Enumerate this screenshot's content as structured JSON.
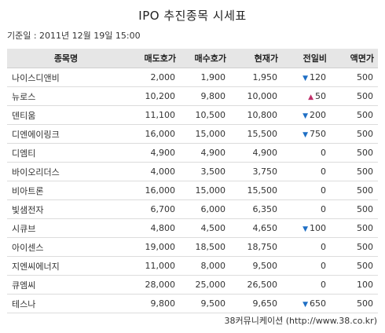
{
  "title": "IPO 추진종목 시세표",
  "base_date": "기준일 : 2011년 12월 19일 15:00",
  "columns": [
    "종목명",
    "매도호가",
    "매수호가",
    "현재가",
    "전일비",
    "액면가"
  ],
  "icons": {
    "down": "triangle-down-icon",
    "up": "triangle-up-icon"
  },
  "colors": {
    "down": "#1f6fc5",
    "up": "#c0306a",
    "header_bg": "#e6e6e6"
  },
  "rows": [
    {
      "name": "나이스디앤비",
      "ask": "2,000",
      "bid": "1,900",
      "price": "1,950",
      "dir": "down",
      "change": "120",
      "par": "500"
    },
    {
      "name": "뉴로스",
      "ask": "10,200",
      "bid": "9,800",
      "price": "10,000",
      "dir": "up",
      "change": "50",
      "par": "500"
    },
    {
      "name": "덴티움",
      "ask": "11,100",
      "bid": "10,500",
      "price": "10,800",
      "dir": "down",
      "change": "200",
      "par": "500"
    },
    {
      "name": "디엔에이링크",
      "ask": "16,000",
      "bid": "15,000",
      "price": "15,500",
      "dir": "down",
      "change": "750",
      "par": "500"
    },
    {
      "name": "디엠티",
      "ask": "4,900",
      "bid": "4,900",
      "price": "4,900",
      "dir": "",
      "change": "0",
      "par": "500"
    },
    {
      "name": "바이오리더스",
      "ask": "4,000",
      "bid": "3,500",
      "price": "3,750",
      "dir": "",
      "change": "0",
      "par": "500"
    },
    {
      "name": "비아트론",
      "ask": "16,000",
      "bid": "15,000",
      "price": "15,500",
      "dir": "",
      "change": "0",
      "par": "500"
    },
    {
      "name": "빛샘전자",
      "ask": "6,700",
      "bid": "6,000",
      "price": "6,350",
      "dir": "",
      "change": "0",
      "par": "500"
    },
    {
      "name": "시큐브",
      "ask": "4,800",
      "bid": "4,500",
      "price": "4,650",
      "dir": "down",
      "change": "100",
      "par": "500"
    },
    {
      "name": "아이센스",
      "ask": "19,000",
      "bid": "18,500",
      "price": "18,750",
      "dir": "",
      "change": "0",
      "par": "500"
    },
    {
      "name": "지엔씨에너지",
      "ask": "11,000",
      "bid": "8,000",
      "price": "9,500",
      "dir": "",
      "change": "0",
      "par": "500"
    },
    {
      "name": "큐엠씨",
      "ask": "28,000",
      "bid": "25,000",
      "price": "26,500",
      "dir": "",
      "change": "0",
      "par": "100"
    },
    {
      "name": "테스나",
      "ask": "9,800",
      "bid": "9,500",
      "price": "9,650",
      "dir": "down",
      "change": "650",
      "par": "500"
    }
  ],
  "source": "38커뮤니케이션 (http://www.38.co.kr)"
}
